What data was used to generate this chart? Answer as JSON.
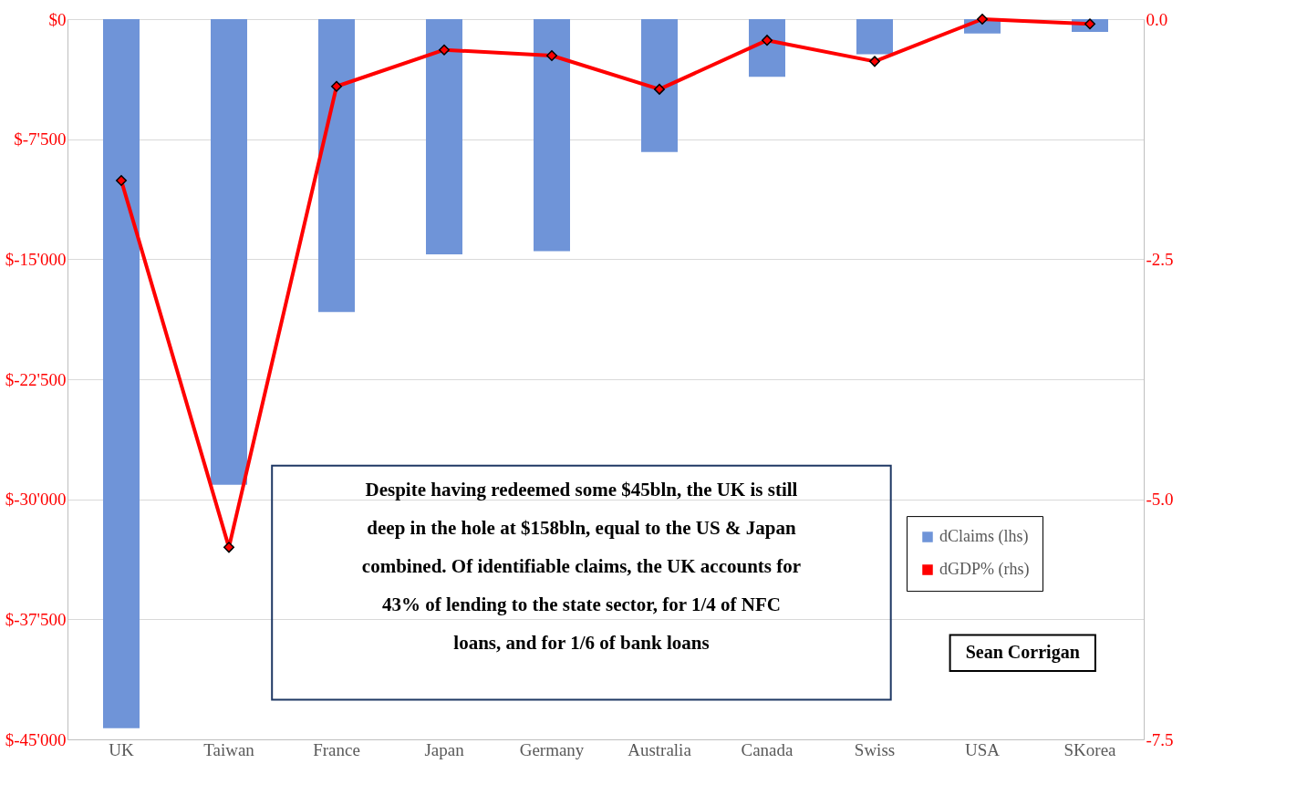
{
  "chart_data": {
    "type": "bar",
    "categories": [
      "UK",
      "Taiwan",
      "France",
      "Japan",
      "Germany",
      "Australia",
      "Canada",
      "Swiss",
      "USA",
      "SKorea"
    ],
    "series": [
      {
        "name": "dClaims (lhs)",
        "color": "#6f94d8",
        "values": [
          -44300,
          -29100,
          -18300,
          -14700,
          -14500,
          -8300,
          -3600,
          -2200,
          -900,
          -800
        ]
      },
      {
        "name": "dGDP% (rhs)",
        "type": "line",
        "axis": "y2",
        "color": "#ff0000",
        "values": [
          -1.68,
          -5.5,
          -0.7,
          -0.32,
          -0.38,
          -0.73,
          -0.22,
          -0.44,
          0.0,
          -0.05
        ]
      }
    ],
    "ylim": [
      -45000,
      0
    ],
    "yticks": [
      {
        "value": 0,
        "label": "$0"
      },
      {
        "value": -7500,
        "label": "$-7'500"
      },
      {
        "value": -15000,
        "label": "$-15'000"
      },
      {
        "value": -22500,
        "label": "$-22'500"
      },
      {
        "value": -30000,
        "label": "$-30'000"
      },
      {
        "value": -37500,
        "label": "$-37'500"
      },
      {
        "value": -45000,
        "label": "$-45'000"
      }
    ],
    "y2lim": [
      -7.5,
      0
    ],
    "y2ticks": [
      {
        "value": 0,
        "label": "0.0"
      },
      {
        "value": -2.5,
        "label": "-2.5"
      },
      {
        "value": -5,
        "label": "-5.0"
      },
      {
        "value": -7.5,
        "label": "-7.5"
      }
    ],
    "grid": "y",
    "legend": "right",
    "marker": "diamond",
    "line_style": "solid",
    "annotations": [
      "Despite having redeemed some $45bln, the UK is still deep in the hole at $158bln, equal to the US & Japan combined. Of identifiable claims, the UK accounts for 43% of lending to the state  sector, for 1/4 of NFC loans, and for 1/6 of bank loans",
      "Sean Corrigan"
    ]
  }
}
